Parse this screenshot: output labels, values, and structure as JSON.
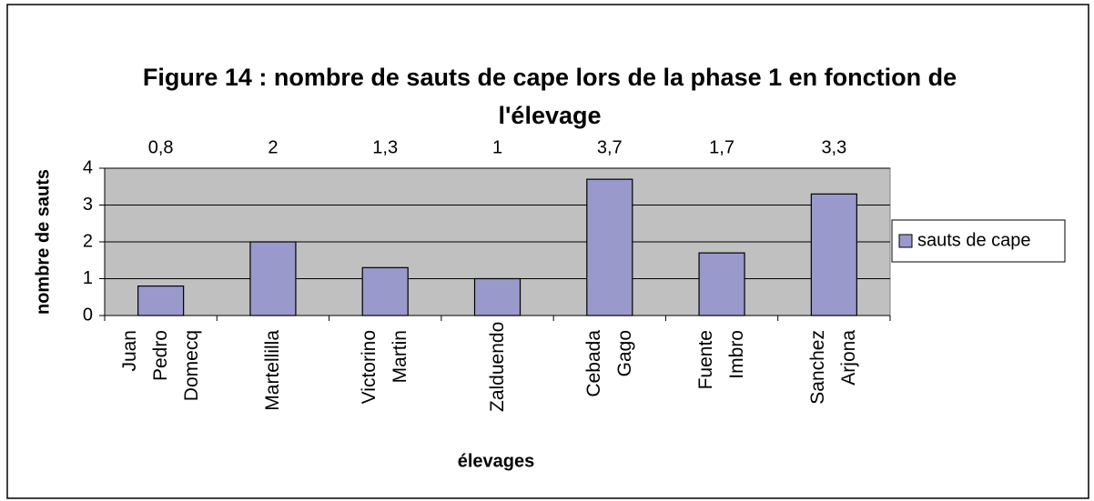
{
  "chart_data": {
    "type": "bar",
    "title": "Figure 14 : nombre de sauts de cape lors de la phase 1 en fonction de l'élevage",
    "xlabel": "élevages",
    "ylabel": "nombre de sauts",
    "categories": [
      "Juan Pedro Domecq",
      "Martellilla",
      "Victorino Martin",
      "Zalduendo",
      "Cebada Gago",
      "Fuente Imbro",
      "Sanchez Arjona"
    ],
    "series": [
      {
        "name": "sauts de cape",
        "color": "#9999cc",
        "values": [
          0.8,
          2,
          1.3,
          1,
          3.7,
          1.7,
          3.3
        ],
        "value_labels": [
          "0,8",
          "2",
          "1,3",
          "1",
          "3,7",
          "1,7",
          "3,3"
        ]
      }
    ],
    "ylim": [
      0,
      4
    ],
    "yticks": [
      0,
      1,
      2,
      3,
      4
    ],
    "grid": true,
    "legend": "right"
  }
}
